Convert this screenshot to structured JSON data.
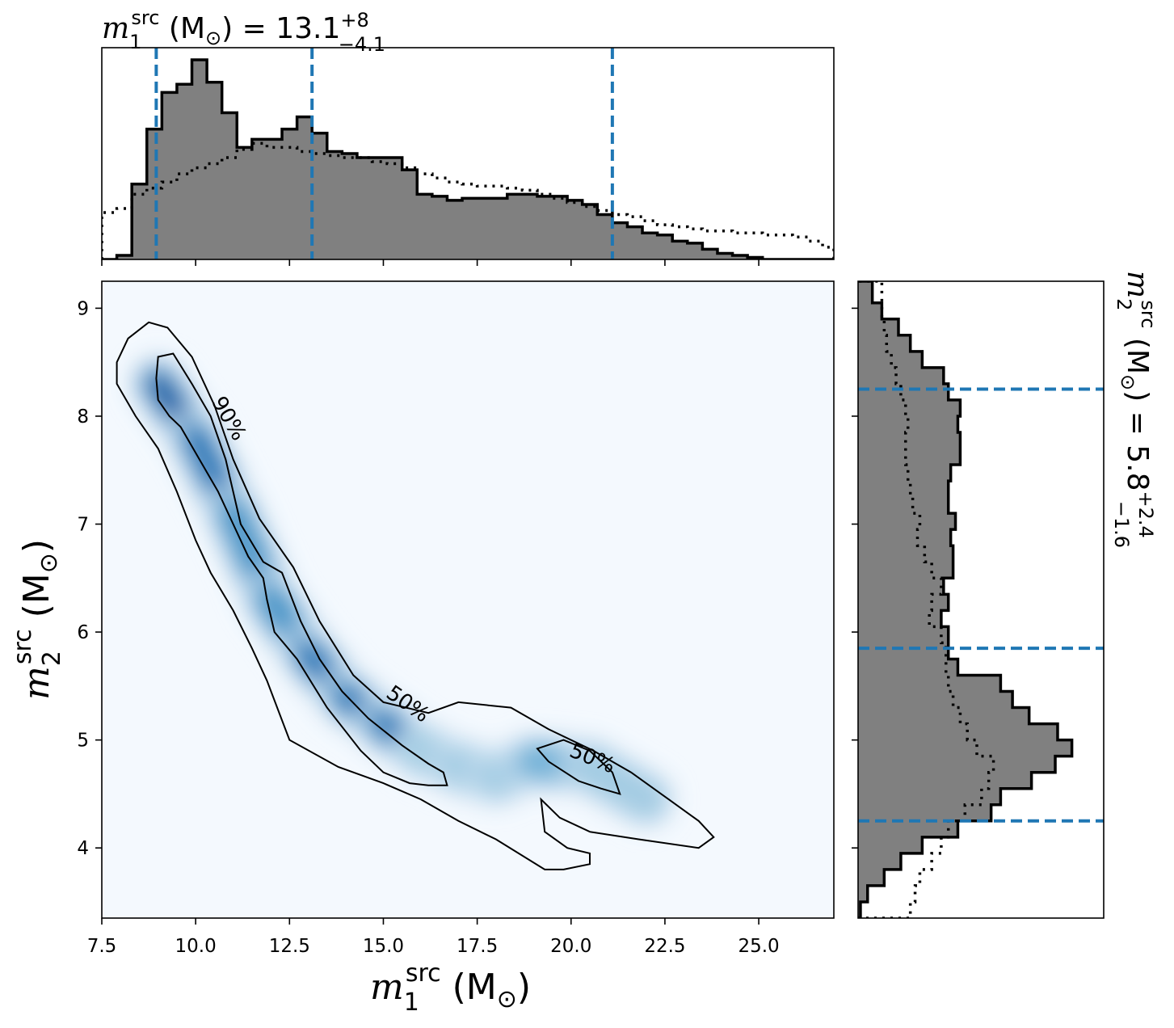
{
  "figure": {
    "top_title": {
      "symbol": "m",
      "sub": "1",
      "sup": "src",
      "unit": "(M",
      "unit_sub": "⊙",
      "unit_close": ")",
      "eq": "= 13.1",
      "err_plus": "+8",
      "err_minus": "−4.1"
    },
    "right_title": {
      "symbol": "m",
      "sub": "2",
      "sup": "src",
      "unit": "(M",
      "unit_sub": "⊙",
      "unit_close": ")",
      "eq": "= 5.8",
      "err_plus": "+2.4",
      "err_minus": "−1.6"
    },
    "xlabel": {
      "symbol": "m",
      "sub": "1",
      "sup": "src",
      "unit": "(M",
      "unit_sub": "⊙",
      "unit_close": ")"
    },
    "ylabel": {
      "symbol": "m",
      "sub": "2",
      "sup": "src",
      "unit": "(M",
      "unit_sub": "⊙",
      "unit_close": ")"
    },
    "contour_labels": [
      "90%",
      "50%",
      "50%"
    ]
  },
  "chart_data": [
    {
      "type": "heatmap",
      "name": "joint-posterior",
      "xlim": [
        7.5,
        27.0
      ],
      "ylim": [
        3.35,
        9.25
      ],
      "xticks": [
        7.5,
        10.0,
        12.5,
        15.0,
        17.5,
        20.0,
        22.5,
        25.0
      ],
      "xtick_labels": [
        "7.5",
        "10.0",
        "12.5",
        "15.0",
        "17.5",
        "20.0",
        "22.5",
        "25.0"
      ],
      "yticks": [
        4,
        5,
        6,
        7,
        8,
        9
      ],
      "ytick_labels": [
        "4",
        "5",
        "6",
        "7",
        "8",
        "9"
      ],
      "colormap": "Blues",
      "density_ridge": [
        {
          "x": 9.0,
          "y": 8.3
        },
        {
          "x": 10.0,
          "y": 7.8
        },
        {
          "x": 11.0,
          "y": 7.1
        },
        {
          "x": 12.0,
          "y": 6.3
        },
        {
          "x": 13.0,
          "y": 5.8
        },
        {
          "x": 14.0,
          "y": 5.4
        },
        {
          "x": 15.0,
          "y": 5.15
        },
        {
          "x": 16.0,
          "y": 4.9
        },
        {
          "x": 17.0,
          "y": 4.75
        },
        {
          "x": 18.0,
          "y": 4.65
        },
        {
          "x": 19.0,
          "y": 4.8
        },
        {
          "x": 20.5,
          "y": 4.75
        },
        {
          "x": 22.0,
          "y": 4.45
        }
      ],
      "contours": [
        {
          "level": "90%",
          "points": [
            [
              8.75,
              8.87
            ],
            [
              9.25,
              8.82
            ],
            [
              9.9,
              8.55
            ],
            [
              10.5,
              8.1
            ],
            [
              11.0,
              7.6
            ],
            [
              11.7,
              7.05
            ],
            [
              12.6,
              6.6
            ],
            [
              13.3,
              6.1
            ],
            [
              14.2,
              5.6
            ],
            [
              15.0,
              5.35
            ],
            [
              16.2,
              5.25
            ],
            [
              17.0,
              5.35
            ],
            [
              18.4,
              5.3
            ],
            [
              19.4,
              5.1
            ],
            [
              20.6,
              4.9
            ],
            [
              21.6,
              4.7
            ],
            [
              22.6,
              4.45
            ],
            [
              23.4,
              4.25
            ],
            [
              23.8,
              4.1
            ],
            [
              23.4,
              4.0
            ],
            [
              21.8,
              4.08
            ],
            [
              20.5,
              4.15
            ],
            [
              19.7,
              4.28
            ],
            [
              19.2,
              4.45
            ],
            [
              19.3,
              4.15
            ],
            [
              19.9,
              4.0
            ],
            [
              20.5,
              3.95
            ],
            [
              20.5,
              3.85
            ],
            [
              19.8,
              3.8
            ],
            [
              19.3,
              3.8
            ],
            [
              18.0,
              4.08
            ],
            [
              17.0,
              4.25
            ],
            [
              16.0,
              4.45
            ],
            [
              15.0,
              4.6
            ],
            [
              13.8,
              4.75
            ],
            [
              12.5,
              5.0
            ],
            [
              11.9,
              5.55
            ],
            [
              11.5,
              5.85
            ],
            [
              11.0,
              6.2
            ],
            [
              10.4,
              6.55
            ],
            [
              10.0,
              6.85
            ],
            [
              9.5,
              7.3
            ],
            [
              9.0,
              7.7
            ],
            [
              8.4,
              8.0
            ],
            [
              7.9,
              8.3
            ],
            [
              7.9,
              8.5
            ],
            [
              8.2,
              8.72
            ],
            [
              8.75,
              8.87
            ]
          ]
        },
        {
          "level": "50%",
          "points": [
            [
              9.0,
              8.55
            ],
            [
              9.4,
              8.58
            ],
            [
              9.9,
              8.3
            ],
            [
              10.4,
              8.0
            ],
            [
              10.8,
              7.6
            ],
            [
              11.2,
              7.0
            ],
            [
              11.8,
              6.65
            ],
            [
              12.3,
              6.55
            ],
            [
              12.8,
              6.1
            ],
            [
              13.3,
              5.75
            ],
            [
              13.9,
              5.45
            ],
            [
              14.6,
              5.2
            ],
            [
              15.5,
              4.95
            ],
            [
              16.2,
              4.78
            ],
            [
              16.6,
              4.7
            ],
            [
              16.7,
              4.58
            ],
            [
              16.2,
              4.58
            ],
            [
              15.7,
              4.6
            ],
            [
              15.0,
              4.7
            ],
            [
              14.4,
              4.9
            ],
            [
              13.5,
              5.3
            ],
            [
              12.7,
              5.75
            ],
            [
              12.1,
              6.0
            ],
            [
              11.9,
              6.3
            ],
            [
              11.8,
              6.5
            ],
            [
              11.4,
              6.7
            ],
            [
              11.0,
              7.0
            ],
            [
              10.6,
              7.3
            ],
            [
              10.1,
              7.6
            ],
            [
              9.6,
              7.9
            ],
            [
              9.3,
              8.0
            ],
            [
              9.0,
              8.15
            ],
            [
              8.95,
              8.35
            ],
            [
              9.0,
              8.55
            ]
          ]
        },
        {
          "level": "50%",
          "points": [
            [
              19.1,
              4.92
            ],
            [
              19.8,
              5.0
            ],
            [
              20.5,
              4.9
            ],
            [
              21.1,
              4.7
            ],
            [
              21.3,
              4.5
            ],
            [
              20.8,
              4.55
            ],
            [
              20.2,
              4.62
            ],
            [
              19.4,
              4.8
            ],
            [
              19.1,
              4.92
            ]
          ]
        }
      ]
    },
    {
      "type": "area",
      "name": "m1-marginal",
      "xlim": [
        7.5,
        27.0
      ],
      "bin_edges": [
        7.5,
        7.9,
        8.3,
        8.7,
        9.1,
        9.5,
        9.9,
        10.3,
        10.7,
        11.1,
        11.5,
        11.9,
        12.3,
        12.7,
        13.1,
        13.5,
        13.9,
        14.3,
        14.7,
        15.1,
        15.5,
        15.9,
        16.3,
        16.7,
        17.1,
        17.5,
        17.9,
        18.3,
        18.7,
        19.1,
        19.5,
        19.9,
        20.3,
        20.7,
        21.1,
        21.5,
        21.9,
        22.3,
        22.7,
        23.1,
        23.5,
        23.9,
        24.3,
        24.7,
        25.1,
        25.5,
        25.9,
        26.3,
        26.7,
        27.0
      ],
      "series": [
        {
          "name": "posterior",
          "values": [
            0.0,
            0.02,
            0.37,
            0.64,
            0.82,
            0.86,
            0.98,
            0.87,
            0.72,
            0.55,
            0.59,
            0.59,
            0.64,
            0.7,
            0.62,
            0.53,
            0.52,
            0.5,
            0.5,
            0.5,
            0.44,
            0.32,
            0.31,
            0.29,
            0.3,
            0.3,
            0.3,
            0.32,
            0.32,
            0.31,
            0.31,
            0.29,
            0.27,
            0.22,
            0.18,
            0.16,
            0.13,
            0.12,
            0.09,
            0.08,
            0.05,
            0.03,
            0.02,
            0.01,
            0.0,
            0.0,
            0.0,
            0.0,
            0.0
          ]
        },
        {
          "name": "prior",
          "values": [
            0.23,
            0.25,
            0.32,
            0.35,
            0.38,
            0.42,
            0.45,
            0.47,
            0.5,
            0.54,
            0.57,
            0.55,
            0.55,
            0.53,
            0.52,
            0.51,
            0.5,
            0.5,
            0.48,
            0.47,
            0.45,
            0.42,
            0.4,
            0.38,
            0.37,
            0.36,
            0.36,
            0.35,
            0.34,
            0.32,
            0.3,
            0.28,
            0.26,
            0.24,
            0.22,
            0.21,
            0.19,
            0.17,
            0.16,
            0.15,
            0.14,
            0.14,
            0.13,
            0.13,
            0.12,
            0.12,
            0.11,
            0.09,
            0.06
          ]
        }
      ],
      "quantiles": [
        8.95,
        13.1,
        21.1
      ]
    },
    {
      "type": "area",
      "name": "m2-marginal",
      "orientation": "horizontal",
      "ylim": [
        3.35,
        9.25
      ],
      "bin_edges": [
        3.35,
        3.5,
        3.65,
        3.8,
        3.95,
        4.1,
        4.25,
        4.4,
        4.55,
        4.7,
        4.85,
        5.0,
        5.15,
        5.3,
        5.45,
        5.6,
        5.75,
        5.9,
        6.05,
        6.2,
        6.35,
        6.5,
        6.65,
        6.8,
        6.95,
        7.1,
        7.25,
        7.4,
        7.55,
        7.7,
        7.85,
        8.0,
        8.15,
        8.3,
        8.45,
        8.6,
        8.75,
        8.9,
        9.05,
        9.25
      ],
      "series": [
        {
          "name": "posterior",
          "values": [
            0.01,
            0.04,
            0.11,
            0.18,
            0.27,
            0.42,
            0.56,
            0.6,
            0.73,
            0.83,
            0.9,
            0.84,
            0.72,
            0.65,
            0.6,
            0.42,
            0.38,
            0.38,
            0.35,
            0.38,
            0.36,
            0.4,
            0.4,
            0.39,
            0.41,
            0.38,
            0.38,
            0.39,
            0.43,
            0.43,
            0.42,
            0.43,
            0.38,
            0.36,
            0.27,
            0.22,
            0.17,
            0.1,
            0.06
          ]
        },
        {
          "name": "prior",
          "values": [
            0.22,
            0.24,
            0.26,
            0.31,
            0.35,
            0.38,
            0.45,
            0.52,
            0.55,
            0.57,
            0.5,
            0.46,
            0.43,
            0.4,
            0.38,
            0.37,
            0.37,
            0.35,
            0.3,
            0.31,
            0.35,
            0.31,
            0.28,
            0.25,
            0.26,
            0.23,
            0.22,
            0.21,
            0.2,
            0.2,
            0.21,
            0.2,
            0.18,
            0.16,
            0.14,
            0.12,
            0.11,
            0.1,
            0.1
          ]
        }
      ],
      "quantiles": [
        4.25,
        5.85,
        8.25
      ]
    }
  ]
}
